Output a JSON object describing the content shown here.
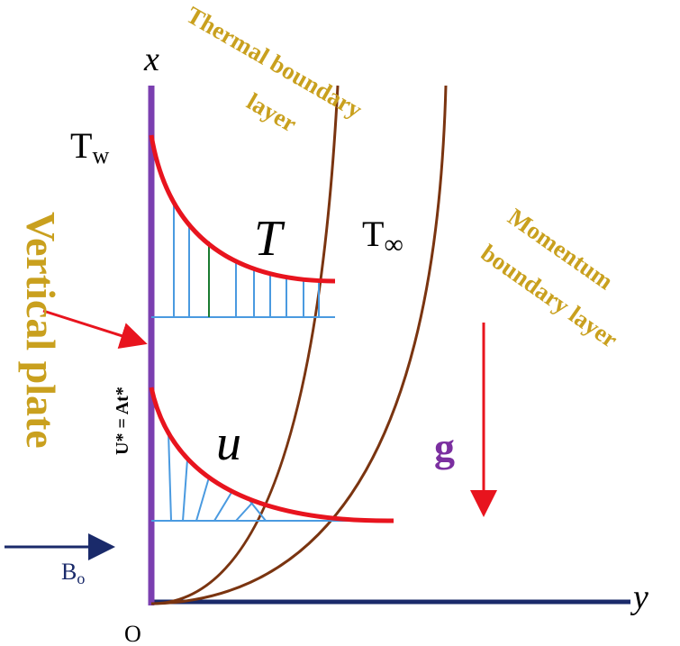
{
  "axes": {
    "x_label": "x",
    "y_label": "y",
    "origin": "O"
  },
  "wall_temperature": {
    "base": "T",
    "sub": "w"
  },
  "ambient_temperature": {
    "base": "T",
    "sub": "∞"
  },
  "temperature_profile": "T",
  "velocity_profile": "u",
  "gravity": "g",
  "plate_label": "Vertical plate",
  "plate_velocity": "U* = At*",
  "magnetic_field": {
    "base": "B",
    "sub": "o"
  },
  "thermal_layer": [
    "Thermal boundary",
    "layer"
  ],
  "momentum_layer": [
    "Momentum",
    "boundary layer"
  ]
}
